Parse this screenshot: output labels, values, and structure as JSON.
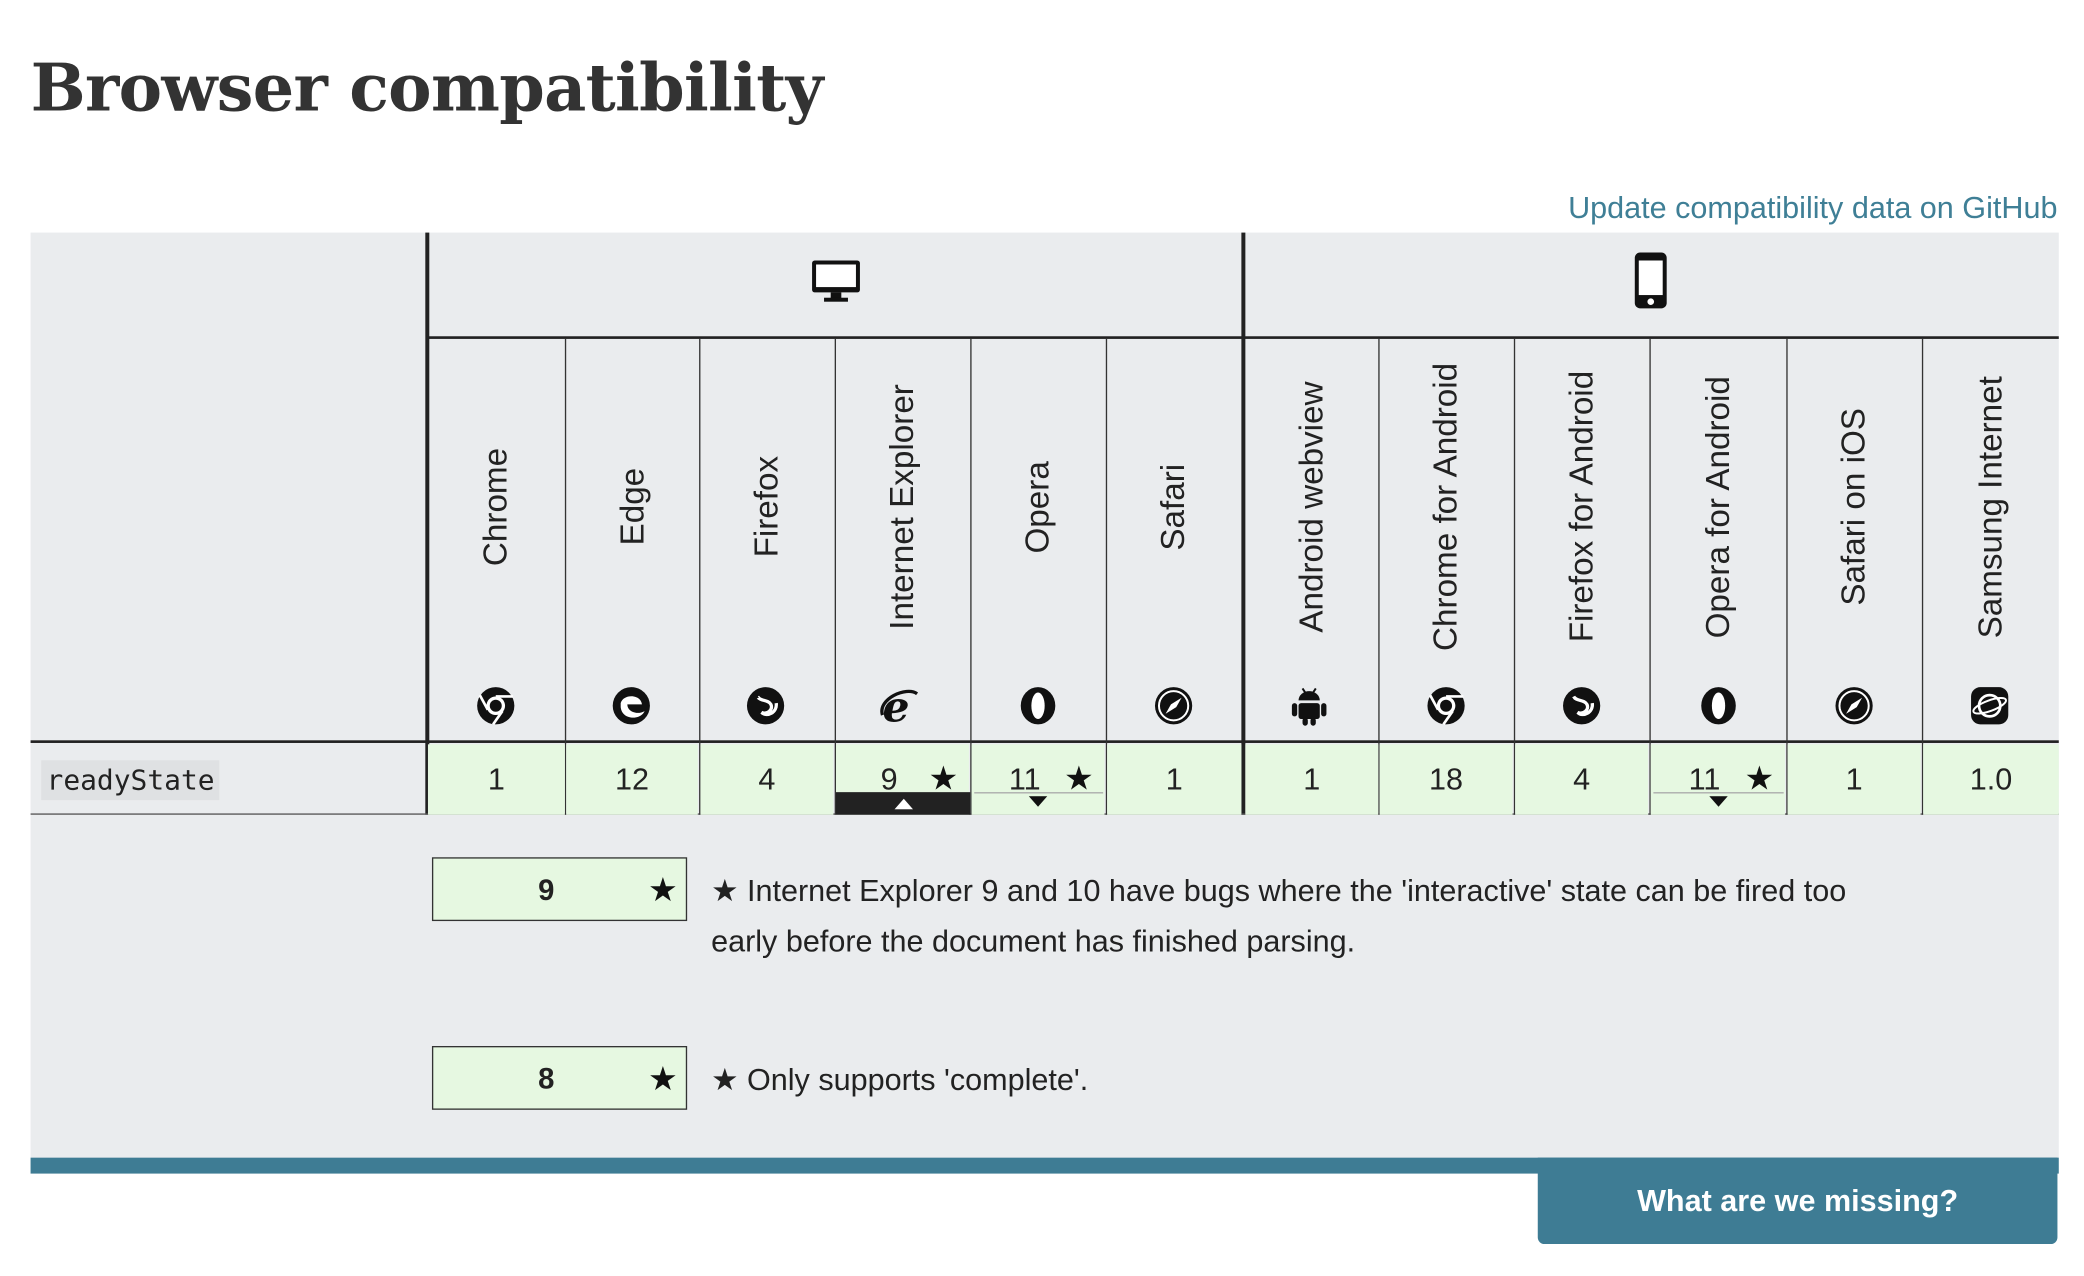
{
  "page": {
    "title": "Browser compatibility",
    "github_link": "Update compatibility data on GitHub"
  },
  "platforms": {
    "desktop_icon": "desktop-icon",
    "mobile_icon": "mobile-icon"
  },
  "browsers": [
    {
      "name": "Chrome",
      "icon": "chrome-icon"
    },
    {
      "name": "Edge",
      "icon": "edge-icon"
    },
    {
      "name": "Firefox",
      "icon": "firefox-icon"
    },
    {
      "name": "Internet Explorer",
      "icon": "internet-explorer-icon"
    },
    {
      "name": "Opera",
      "icon": "opera-icon"
    },
    {
      "name": "Safari",
      "icon": "safari-icon"
    },
    {
      "name": "Android webview",
      "icon": "android-icon"
    },
    {
      "name": "Chrome for Android",
      "icon": "chrome-icon"
    },
    {
      "name": "Firefox for Android",
      "icon": "firefox-icon"
    },
    {
      "name": "Opera for Android",
      "icon": "opera-icon"
    },
    {
      "name": "Safari on iOS",
      "icon": "safari-icon"
    },
    {
      "name": "Samsung Internet",
      "icon": "samsung-internet-icon"
    }
  ],
  "row": {
    "feature": "readyState",
    "values": [
      "1",
      "12",
      "4",
      "9",
      "11",
      "1",
      "1",
      "18",
      "4",
      "11",
      "1",
      "1.0"
    ]
  },
  "notes_symbol": "★",
  "notes": [
    {
      "version": "9",
      "text": "★ Internet Explorer 9 and 10 have bugs where the 'interactive' state can be fired too early before the document has finished parsing."
    },
    {
      "version": "8",
      "text": "★ Only supports 'complete'."
    }
  ],
  "footer": {
    "button": "What are we missing?"
  },
  "colors": {
    "accent": "#3e7c94",
    "supported": "#e6f8e1",
    "header_bg": "#eaecee"
  }
}
